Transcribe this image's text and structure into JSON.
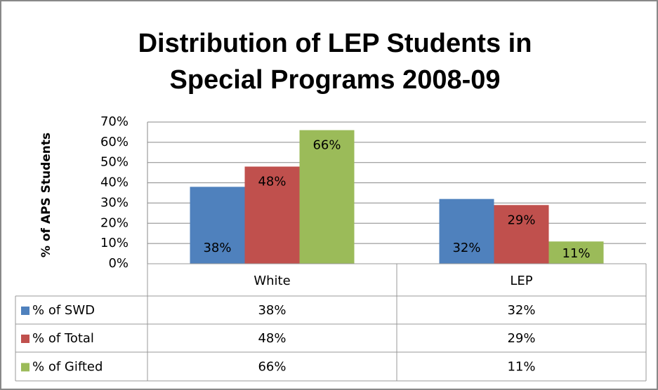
{
  "chart_data": {
    "type": "bar",
    "title": "Distribution of LEP Students in Special Programs 2008-09",
    "y_label": "% of  APS Students",
    "categories": [
      "White",
      "LEP"
    ],
    "series": [
      {
        "name": "% of SWD",
        "color": "#4f81bd",
        "values": [
          38,
          32
        ],
        "value_labels": [
          "38%",
          "32%"
        ]
      },
      {
        "name": "% of Total",
        "color": "#c0504d",
        "values": [
          48,
          29
        ],
        "value_labels": [
          "48%",
          "29%"
        ]
      },
      {
        "name": "% of Gifted",
        "color": "#9bbb59",
        "values": [
          66,
          11
        ],
        "value_labels": [
          "66%",
          "11%"
        ]
      }
    ],
    "ylim": [
      0,
      70
    ],
    "yticks": [
      {
        "value": 0,
        "label": "0%"
      },
      {
        "value": 10,
        "label": "10%"
      },
      {
        "value": 20,
        "label": "20%"
      },
      {
        "value": 30,
        "label": "30%"
      },
      {
        "value": 40,
        "label": "40%"
      },
      {
        "value": 50,
        "label": "50%"
      },
      {
        "value": 60,
        "label": "60%"
      },
      {
        "value": 70,
        "label": "70%"
      }
    ],
    "grid": true,
    "data_table": true
  }
}
